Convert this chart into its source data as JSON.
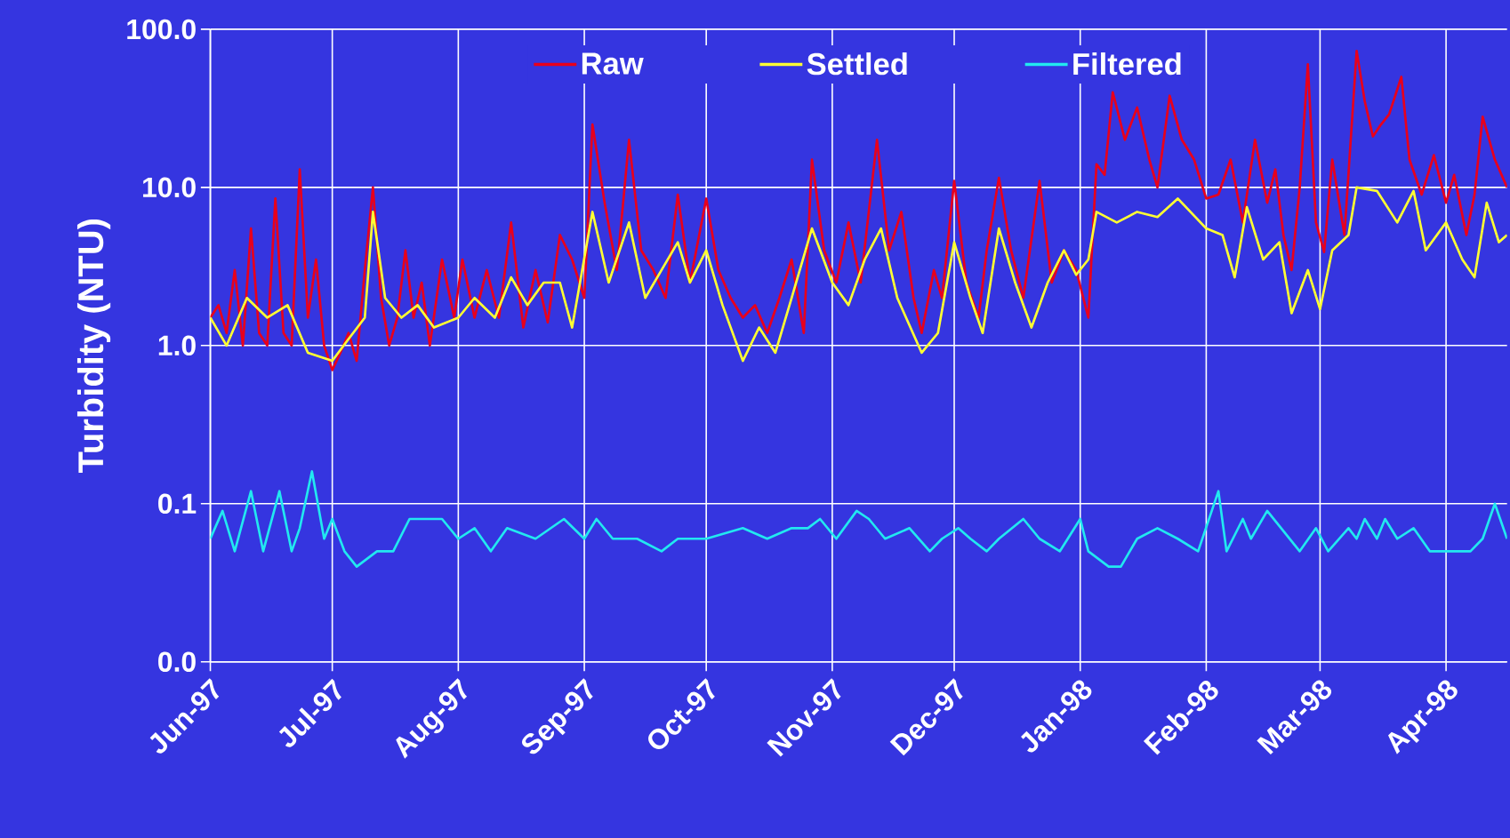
{
  "chart_data": {
    "type": "line",
    "ylabel": "Turbidity (NTU)",
    "log": "y",
    "grid": true,
    "legend": "top",
    "marker": "none",
    "line_style": "solid",
    "xlim": [
      "1997-06-01",
      "1998-04-16"
    ],
    "xticks": [
      {
        "value": "1997-06-01",
        "label": "Jun-97"
      },
      {
        "value": "1997-07-01",
        "label": "Jul-97"
      },
      {
        "value": "1997-08-01",
        "label": "Aug-97"
      },
      {
        "value": "1997-09-01",
        "label": "Sep-97"
      },
      {
        "value": "1997-10-01",
        "label": "Oct-97"
      },
      {
        "value": "1997-11-01",
        "label": "Nov-97"
      },
      {
        "value": "1997-12-01",
        "label": "Dec-97"
      },
      {
        "value": "1998-01-01",
        "label": "Jan-98"
      },
      {
        "value": "1998-02-01",
        "label": "Feb-98"
      },
      {
        "value": "1998-03-01",
        "label": "Mar-98"
      },
      {
        "value": "1998-04-01",
        "label": "Apr-98"
      }
    ],
    "ylim": [
      0.01,
      100
    ],
    "yticks": [
      {
        "value": 0.01,
        "label": "0.0"
      },
      {
        "value": 0.1,
        "label": "0.1"
      },
      {
        "value": 1,
        "label": "1.0"
      },
      {
        "value": 10,
        "label": "10.0"
      },
      {
        "value": 100,
        "label": "100.0"
      }
    ],
    "series": [
      {
        "name": "Raw",
        "color": "#e8001c",
        "x": [
          "1997-06-01",
          "1997-06-03",
          "1997-06-05",
          "1997-06-07",
          "1997-06-09",
          "1997-06-11",
          "1997-06-13",
          "1997-06-15",
          "1997-06-17",
          "1997-06-19",
          "1997-06-21",
          "1997-06-23",
          "1997-06-25",
          "1997-06-27",
          "1997-06-29",
          "1997-07-01",
          "1997-07-03",
          "1997-07-05",
          "1997-07-07",
          "1997-07-09",
          "1997-07-11",
          "1997-07-13",
          "1997-07-15",
          "1997-07-17",
          "1997-07-19",
          "1997-07-21",
          "1997-07-23",
          "1997-07-25",
          "1997-07-28",
          "1997-07-31",
          "1997-08-02",
          "1997-08-05",
          "1997-08-08",
          "1997-08-11",
          "1997-08-14",
          "1997-08-17",
          "1997-08-20",
          "1997-08-23",
          "1997-08-26",
          "1997-08-29",
          "1997-09-01",
          "1997-09-03",
          "1997-09-06",
          "1997-09-09",
          "1997-09-12",
          "1997-09-15",
          "1997-09-18",
          "1997-09-21",
          "1997-09-24",
          "1997-09-27",
          "1997-10-01",
          "1997-10-04",
          "1997-10-07",
          "1997-10-10",
          "1997-10-13",
          "1997-10-16",
          "1997-10-19",
          "1997-10-22",
          "1997-10-25",
          "1997-10-27",
          "1997-10-30",
          "1997-11-02",
          "1997-11-05",
          "1997-11-08",
          "1997-11-12",
          "1997-11-15",
          "1997-11-18",
          "1997-11-21",
          "1997-11-23",
          "1997-11-26",
          "1997-11-28",
          "1997-12-01",
          "1997-12-04",
          "1997-12-07",
          "1997-12-09",
          "1997-12-12",
          "1997-12-15",
          "1997-12-18",
          "1997-12-22",
          "1997-12-25",
          "1997-12-28",
          "1997-12-31",
          "1998-01-03",
          "1998-01-05",
          "1998-01-07",
          "1998-01-09",
          "1998-01-12",
          "1998-01-15",
          "1998-01-18",
          "1998-01-20",
          "1998-01-23",
          "1998-01-26",
          "1998-01-29",
          "1998-02-01",
          "1998-02-04",
          "1998-02-07",
          "1998-02-10",
          "1998-02-13",
          "1998-02-16",
          "1998-02-18",
          "1998-02-20",
          "1998-02-22",
          "1998-02-24",
          "1998-02-26",
          "1998-02-28",
          "1998-03-02",
          "1998-03-04",
          "1998-03-07",
          "1998-03-10",
          "1998-03-12",
          "1998-03-14",
          "1998-03-16",
          "1998-03-18",
          "1998-03-21",
          "1998-03-23",
          "1998-03-26",
          "1998-03-29",
          "1998-04-01",
          "1998-04-03",
          "1998-04-06",
          "1998-04-08",
          "1998-04-10",
          "1998-04-13",
          "1998-04-16"
        ],
        "values": [
          1.5,
          1.8,
          1.2,
          3.0,
          1.0,
          5.5,
          1.2,
          1.0,
          8.5,
          1.2,
          1.0,
          13,
          1.5,
          3.5,
          1.0,
          0.7,
          0.9,
          1.2,
          0.8,
          3.0,
          10,
          2.0,
          1.0,
          1.5,
          4.0,
          1.5,
          2.5,
          1.0,
          3.5,
          1.5,
          3.5,
          1.5,
          3.0,
          1.5,
          6.0,
          1.3,
          3.0,
          1.4,
          5.0,
          3.5,
          2.0,
          25,
          8,
          3,
          20,
          4,
          3,
          2,
          9,
          2.5,
          8.5,
          3,
          2,
          1.5,
          1.8,
          1.2,
          2.0,
          3.5,
          1.2,
          15,
          4,
          2.5,
          6,
          2.5,
          20,
          4,
          7,
          2.0,
          1.2,
          3,
          2.0,
          11,
          2.5,
          1.5,
          4,
          11.5,
          4,
          2.0,
          11,
          2.5,
          4,
          3,
          1.5,
          14,
          12,
          40,
          20,
          32,
          15,
          10,
          38,
          20,
          15,
          8.5,
          9,
          15,
          6,
          20,
          8,
          13,
          5,
          3,
          10,
          60,
          6,
          3.9,
          15,
          5,
          73,
          35,
          21,
          25,
          29,
          50,
          15,
          9,
          16,
          8,
          12,
          5,
          9,
          28,
          15,
          10
        ]
      },
      {
        "name": "Settled",
        "color": "#ffff33",
        "x": [
          "1997-06-01",
          "1997-06-05",
          "1997-06-10",
          "1997-06-15",
          "1997-06-20",
          "1997-06-25",
          "1997-07-01",
          "1997-07-05",
          "1997-07-09",
          "1997-07-11",
          "1997-07-14",
          "1997-07-18",
          "1997-07-22",
          "1997-07-26",
          "1997-08-01",
          "1997-08-05",
          "1997-08-10",
          "1997-08-14",
          "1997-08-18",
          "1997-08-22",
          "1997-08-26",
          "1997-08-29",
          "1997-09-03",
          "1997-09-07",
          "1997-09-12",
          "1997-09-16",
          "1997-09-20",
          "1997-09-24",
          "1997-09-27",
          "1997-10-01",
          "1997-10-05",
          "1997-10-10",
          "1997-10-14",
          "1997-10-18",
          "1997-10-22",
          "1997-10-27",
          "1997-11-01",
          "1997-11-05",
          "1997-11-09",
          "1997-11-13",
          "1997-11-17",
          "1997-11-23",
          "1997-11-27",
          "1997-12-01",
          "1997-12-05",
          "1997-12-08",
          "1997-12-12",
          "1997-12-16",
          "1997-12-20",
          "1997-12-24",
          "1997-12-28",
          "1997-12-31",
          "1998-01-03",
          "1998-01-05",
          "1998-01-10",
          "1998-01-15",
          "1998-01-20",
          "1998-01-25",
          "1998-02-01",
          "1998-02-05",
          "1998-02-08",
          "1998-02-11",
          "1998-02-15",
          "1998-02-19",
          "1998-02-22",
          "1998-02-26",
          "1998-03-01",
          "1998-03-04",
          "1998-03-08",
          "1998-03-10",
          "1998-03-15",
          "1998-03-20",
          "1998-03-24",
          "1998-03-27",
          "1998-04-01",
          "1998-04-05",
          "1998-04-08",
          "1998-04-11",
          "1998-04-14",
          "1998-04-16"
        ],
        "values": [
          1.5,
          1.0,
          2.0,
          1.5,
          1.8,
          0.9,
          0.8,
          1.1,
          1.5,
          7,
          2.0,
          1.5,
          1.8,
          1.3,
          1.5,
          2.0,
          1.5,
          2.7,
          1.8,
          2.5,
          2.5,
          1.3,
          7,
          2.5,
          6,
          2.0,
          3.0,
          4.5,
          2.5,
          4,
          1.8,
          0.8,
          1.3,
          0.9,
          2.0,
          5.5,
          2.5,
          1.8,
          3.5,
          5.5,
          2.0,
          0.9,
          1.2,
          4.5,
          2.0,
          1.2,
          5.5,
          2.5,
          1.3,
          2.5,
          4.0,
          2.8,
          3.5,
          7,
          6,
          7,
          6.5,
          8.5,
          5.5,
          5,
          2.7,
          7.5,
          3.5,
          4.5,
          1.6,
          3,
          1.7,
          4,
          5,
          10,
          9.5,
          6,
          9.5,
          4,
          6,
          3.5,
          2.7,
          8,
          4.5,
          5
        ]
      },
      {
        "name": "Filtered",
        "color": "#22e8f0",
        "x": [
          "1997-06-01",
          "1997-06-04",
          "1997-06-07",
          "1997-06-11",
          "1997-06-14",
          "1997-06-18",
          "1997-06-21",
          "1997-06-23",
          "1997-06-26",
          "1997-06-29",
          "1997-07-01",
          "1997-07-04",
          "1997-07-07",
          "1997-07-12",
          "1997-07-16",
          "1997-07-20",
          "1997-07-28",
          "1997-08-01",
          "1997-08-05",
          "1997-08-09",
          "1997-08-13",
          "1997-08-20",
          "1997-08-27",
          "1997-09-01",
          "1997-09-04",
          "1997-09-08",
          "1997-09-14",
          "1997-09-20",
          "1997-09-24",
          "1997-10-01",
          "1997-10-10",
          "1997-10-16",
          "1997-10-22",
          "1997-10-26",
          "1997-10-29",
          "1997-11-02",
          "1997-11-07",
          "1997-11-10",
          "1997-11-14",
          "1997-11-20",
          "1997-11-25",
          "1997-11-28",
          "1997-12-02",
          "1997-12-05",
          "1997-12-09",
          "1997-12-12",
          "1997-12-18",
          "1997-12-22",
          "1997-12-27",
          "1998-01-01",
          "1998-01-03",
          "1998-01-08",
          "1998-01-11",
          "1998-01-15",
          "1998-01-20",
          "1998-01-25",
          "1998-01-30",
          "1998-02-04",
          "1998-02-06",
          "1998-02-10",
          "1998-02-12",
          "1998-02-16",
          "1998-02-24",
          "1998-02-28",
          "1998-03-03",
          "1998-03-08",
          "1998-03-10",
          "1998-03-12",
          "1998-03-15",
          "1998-03-17",
          "1998-03-20",
          "1998-03-24",
          "1998-03-28",
          "1998-04-02",
          "1998-04-07",
          "1998-04-10",
          "1998-04-13",
          "1998-04-16"
        ],
        "values": [
          0.06,
          0.09,
          0.05,
          0.12,
          0.05,
          0.12,
          0.05,
          0.07,
          0.16,
          0.06,
          0.08,
          0.05,
          0.04,
          0.05,
          0.05,
          0.08,
          0.08,
          0.06,
          0.07,
          0.05,
          0.07,
          0.06,
          0.08,
          0.06,
          0.08,
          0.06,
          0.06,
          0.05,
          0.06,
          0.06,
          0.07,
          0.06,
          0.07,
          0.07,
          0.08,
          0.06,
          0.09,
          0.08,
          0.06,
          0.07,
          0.05,
          0.06,
          0.07,
          0.06,
          0.05,
          0.06,
          0.08,
          0.06,
          0.05,
          0.08,
          0.05,
          0.04,
          0.04,
          0.06,
          0.07,
          0.06,
          0.05,
          0.12,
          0.05,
          0.08,
          0.06,
          0.09,
          0.05,
          0.07,
          0.05,
          0.07,
          0.06,
          0.08,
          0.06,
          0.08,
          0.06,
          0.07,
          0.05,
          0.05,
          0.05,
          0.06,
          0.1,
          0.06
        ]
      }
    ]
  }
}
